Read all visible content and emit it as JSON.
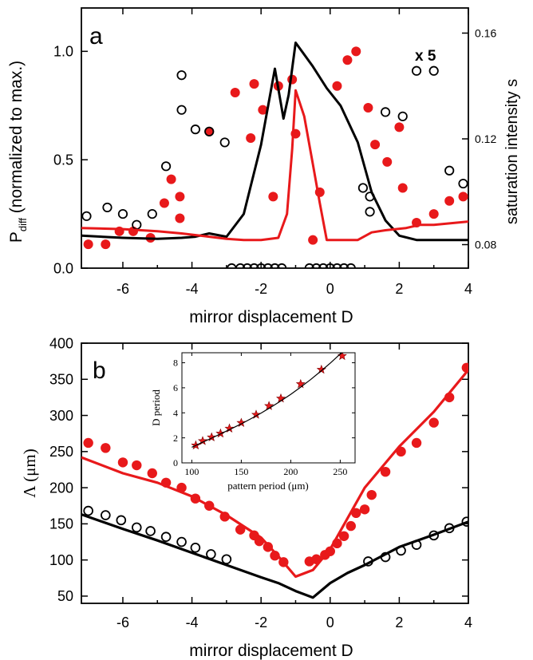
{
  "chart_data": [
    {
      "type": "scatter",
      "panel_label": "a",
      "xlabel": "mirror displacement D",
      "ylabel": "P",
      "ylabel_sub": "diff",
      "ylabel_rest": " (normalized to max.)",
      "y2label": "saturation intensity s",
      "annotation": "x 5",
      "xlim": [
        -7.2,
        4.0
      ],
      "ylim": [
        0,
        1.2
      ],
      "y2lim": [
        0.0711,
        0.1695
      ],
      "xticks": [
        -6,
        -4,
        -2,
        0,
        2,
        4
      ],
      "yticks": [
        0.0,
        0.5,
        1.0
      ],
      "ytick_labels": [
        "0.0",
        "0.5",
        "1.0"
      ],
      "y2ticks": [
        0.08,
        0.12,
        0.16
      ],
      "y2tick_labels": [
        "0.08",
        "0.12",
        "0.16"
      ],
      "series": [
        {
          "kind": "markers",
          "marker": "filled-circle",
          "color": "#e8191b",
          "axis": "left",
          "x": [
            -7.0,
            -6.5,
            -6.1,
            -5.7,
            -5.2,
            -4.8,
            -4.6,
            -4.35,
            -4.35,
            -3.5,
            -2.75,
            -2.3,
            -2.2,
            -1.95,
            -1.65,
            -1.5,
            -1.1,
            -1.0,
            -0.5,
            -0.3,
            0.2,
            0.5,
            0.75,
            1.1,
            1.3,
            1.65,
            2.0,
            2.1,
            2.5,
            3.0,
            3.45,
            3.85
          ],
          "y": [
            0.11,
            0.11,
            0.17,
            0.17,
            0.14,
            0.3,
            0.41,
            0.33,
            0.23,
            0.63,
            0.81,
            0.6,
            0.85,
            0.73,
            0.33,
            0.84,
            0.87,
            0.62,
            0.13,
            0.35,
            0.84,
            0.96,
            1.0,
            0.74,
            0.57,
            0.49,
            0.65,
            0.37,
            0.21,
            0.25,
            0.31,
            0.33
          ]
        },
        {
          "kind": "markers",
          "marker": "open-circle",
          "color": "#000000",
          "axis": "left",
          "x": [
            -7.05,
            -6.45,
            -6.0,
            -5.6,
            -5.15,
            -4.75,
            -4.3,
            -4.3,
            -3.9,
            -3.5,
            -3.05,
            -2.85,
            -2.6,
            -2.4,
            -2.2,
            -2.0,
            -1.8,
            -1.6,
            -1.4,
            -0.6,
            -0.4,
            -0.2,
            0.0,
            0.2,
            0.4,
            0.6,
            0.95,
            1.15,
            1.15,
            1.6,
            2.1,
            2.5,
            3.0,
            3.45,
            3.85
          ],
          "y": [
            0.24,
            0.28,
            0.25,
            0.2,
            0.25,
            0.47,
            0.89,
            0.73,
            0.64,
            0.63,
            0.58,
            0.0,
            0.0,
            0.0,
            0.0,
            0.0,
            0.0,
            0.0,
            0.0,
            0.0,
            0.0,
            0.0,
            0.0,
            0.0,
            0.0,
            0.0,
            0.37,
            0.33,
            0.26,
            0.72,
            0.7,
            0.91,
            0.91,
            0.45,
            0.39
          ]
        },
        {
          "kind": "line",
          "color": "#000000",
          "axis": "left",
          "x": [
            -7.2,
            -6.0,
            -5.0,
            -4.3,
            -3.9,
            -3.5,
            -3.0,
            -2.5,
            -2.0,
            -1.6,
            -1.35,
            -1.2,
            -1.0,
            -0.5,
            -0.1,
            0.3,
            0.8,
            1.2,
            1.6,
            2.0,
            2.5,
            3.0,
            4.0
          ],
          "y": [
            0.15,
            0.14,
            0.135,
            0.14,
            0.145,
            0.16,
            0.145,
            0.25,
            0.57,
            0.92,
            0.69,
            0.8,
            1.04,
            0.93,
            0.83,
            0.75,
            0.58,
            0.35,
            0.22,
            0.15,
            0.13,
            0.13,
            0.13
          ]
        },
        {
          "kind": "line",
          "color": "#e8191b",
          "axis": "left",
          "x": [
            -7.2,
            -6.0,
            -5.0,
            -4.3,
            -3.5,
            -3.0,
            -2.5,
            -2.0,
            -1.5,
            -1.25,
            -1.1,
            -1.0,
            -0.75,
            -0.5,
            -0.3,
            -0.1,
            0.2,
            0.4,
            0.8,
            1.2,
            1.6,
            2.2,
            2.6,
            3.0,
            4.0
          ],
          "y": [
            0.185,
            0.18,
            0.17,
            0.16,
            0.145,
            0.135,
            0.13,
            0.13,
            0.14,
            0.25,
            0.55,
            0.82,
            0.7,
            0.48,
            0.3,
            0.13,
            0.13,
            0.13,
            0.13,
            0.165,
            0.175,
            0.185,
            0.2,
            0.2,
            0.215
          ]
        }
      ]
    },
    {
      "type": "scatter",
      "panel_label": "b",
      "xlabel": "mirror displacement D",
      "ylabel": "Λ (μm)",
      "xlim": [
        -7.2,
        4.0
      ],
      "ylim": [
        40,
        400
      ],
      "xticks": [
        -6,
        -4,
        -2,
        0,
        2,
        4
      ],
      "yticks": [
        50,
        100,
        150,
        200,
        250,
        300,
        350,
        400
      ],
      "series": [
        {
          "kind": "markers",
          "marker": "filled-circle",
          "color": "#e8191b",
          "x": [
            -7.0,
            -6.5,
            -6.0,
            -5.6,
            -5.15,
            -4.75,
            -4.3,
            -3.9,
            -3.5,
            -3.05,
            -2.6,
            -2.2,
            -2.05,
            -1.8,
            -1.6,
            -1.35,
            -0.6,
            -0.4,
            -0.15,
            0.0,
            0.2,
            0.4,
            0.6,
            0.75,
            1.0,
            1.2,
            1.6,
            2.05,
            2.5,
            3.0,
            3.45,
            3.95
          ],
          "y": [
            262,
            255,
            235,
            231,
            220,
            207,
            200,
            185,
            175,
            160,
            142,
            134,
            126,
            118,
            106,
            97,
            98,
            101,
            107,
            112,
            123,
            133,
            147,
            165,
            170,
            190,
            222,
            250,
            262,
            290,
            325,
            366
          ]
        },
        {
          "kind": "markers",
          "marker": "open-circle",
          "color": "#000000",
          "x": [
            -7.0,
            -6.5,
            -6.05,
            -5.6,
            -5.2,
            -4.75,
            -4.3,
            -3.9,
            -3.45,
            -3.0,
            1.1,
            1.6,
            2.05,
            2.5,
            3.0,
            3.45,
            3.95
          ],
          "y": [
            168,
            162,
            155,
            145,
            140,
            132,
            125,
            117,
            108,
            101,
            98,
            104,
            113,
            121,
            134,
            144,
            153
          ]
        },
        {
          "kind": "line",
          "color": "#e8191b",
          "x": [
            -7.2,
            -6.0,
            -5.0,
            -4.0,
            -3.0,
            -2.0,
            -1.5,
            -1.0,
            -0.5,
            0.0,
            1.0,
            2.0,
            3.0,
            4.0
          ],
          "y": [
            242,
            220,
            207,
            188,
            162,
            131,
            105,
            77,
            86,
            115,
            200,
            257,
            305,
            363
          ]
        },
        {
          "kind": "line",
          "color": "#000000",
          "x": [
            -7.2,
            -6.0,
            -5.0,
            -4.0,
            -3.0,
            -2.0,
            -1.5,
            -1.0,
            -0.5,
            0.0,
            0.5,
            1.0,
            2.0,
            3.0,
            4.0
          ],
          "y": [
            163,
            143,
            127,
            110,
            93,
            76,
            68,
            57,
            48,
            68,
            82,
            93,
            118,
            135,
            153
          ]
        }
      ]
    },
    {
      "type": "scatter",
      "panel": "inset",
      "xlabel": "pattern period (μm)",
      "ylabel": "D period",
      "xlim": [
        90,
        265
      ],
      "ylim": [
        0,
        8.8
      ],
      "xticks": [
        100,
        150,
        200,
        250
      ],
      "yticks": [
        0,
        2,
        4,
        6,
        8
      ],
      "series": [
        {
          "kind": "markers",
          "marker": "star",
          "color": "#e8191b",
          "x": [
            104,
            111,
            120,
            129,
            138,
            150,
            165,
            178,
            190,
            210,
            231,
            252
          ],
          "y": [
            1.4,
            1.75,
            2.05,
            2.35,
            2.75,
            3.2,
            3.85,
            4.55,
            5.15,
            6.3,
            7.45,
            8.55
          ]
        },
        {
          "kind": "line",
          "color": "#000000",
          "x": [
            100,
            110,
            120,
            130,
            140,
            150,
            160,
            170,
            180,
            190,
            200,
            210,
            220,
            230,
            240,
            250,
            258
          ],
          "y": [
            1.25,
            1.62,
            1.98,
            2.35,
            2.73,
            3.12,
            3.54,
            3.98,
            4.45,
            4.95,
            5.48,
            6.05,
            6.65,
            7.3,
            7.98,
            8.7,
            9.1
          ]
        }
      ]
    }
  ]
}
